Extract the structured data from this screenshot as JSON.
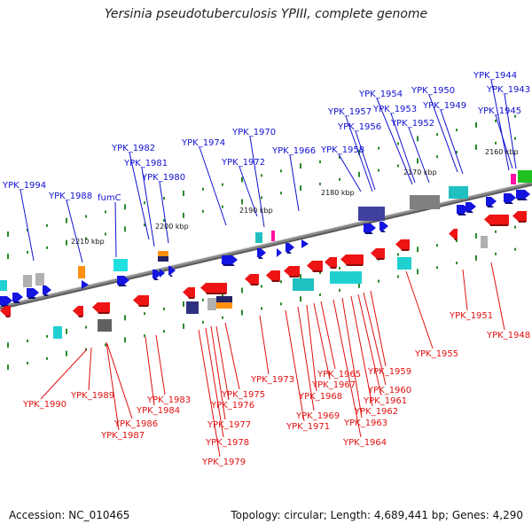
{
  "title": "Yersinia pseudotuberculosis YPIII, complete genome",
  "footer": {
    "accession": "Accession: NC_010465",
    "summary": "Topology: circular; Length: 4,689,441 bp; Genes: 4,290"
  },
  "colors": {
    "forward_label": "#1010d0",
    "reverse_label": "#e01010",
    "backbone": "#8a8a8a",
    "tick": "#2a8a2a"
  },
  "kbp_labels": [
    "2210 kbp",
    "2200 kbp",
    "2190 kbp",
    "2180 kbp",
    "2170 kbp",
    "2160 kbp"
  ],
  "forward_genes": [
    "YPK_1994",
    "YPK_1988",
    "fumC",
    "YPK_1982",
    "YPK_1981",
    "YPK_1980",
    "YPK_1974",
    "YPK_1970",
    "YPK_1972",
    "YPK_1966",
    "YPK_1957",
    "YPK_1958",
    "YPK_1956",
    "YPK_1954",
    "YPK_1953",
    "YPK_1952",
    "YPK_1950",
    "YPK_1949",
    "YPK_1944",
    "YPK_1943",
    "YPK_1945"
  ],
  "reverse_genes": [
    "YPK_1990",
    "YPK_1989",
    "YPK_1986",
    "YPK_1987",
    "YPK_1983",
    "YPK_1984",
    "YPK_1975",
    "YPK_1976",
    "YPK_1977",
    "YPK_1978",
    "YPK_1979",
    "YPK_1973",
    "YPK_1965",
    "YPK_1967",
    "YPK_1968",
    "YPK_1969",
    "YPK_1971",
    "YPK_1959",
    "YPK_1960",
    "YPK_1961",
    "YPK_1962",
    "YPK_1963",
    "YPK_1964",
    "YPK_1955",
    "YPK_1951",
    "YPK_1948"
  ]
}
